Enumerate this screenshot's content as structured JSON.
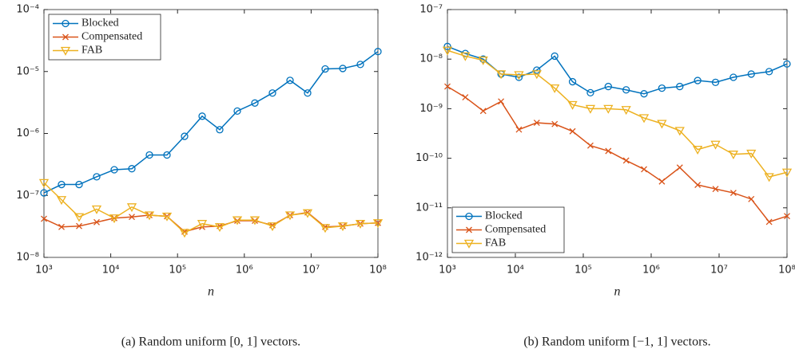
{
  "chart_data": [
    {
      "type": "line",
      "xscale": "log",
      "yscale": "log",
      "legend": "upper left",
      "xlabel": "n",
      "caption": "(a) Random uniform [0, 1] vectors.",
      "xlim": [
        1000,
        100000000
      ],
      "ylim": [
        1e-08,
        0.0001
      ],
      "xticks": [
        {
          "value": 1000,
          "label": "10³"
        },
        {
          "value": 10000,
          "label": "10⁴"
        },
        {
          "value": 100000,
          "label": "10⁵"
        },
        {
          "value": 1000000,
          "label": "10⁶"
        },
        {
          "value": 10000000,
          "label": "10⁷"
        },
        {
          "value": 100000000,
          "label": "10⁸"
        }
      ],
      "yticks": [
        {
          "value": 1e-08,
          "label": "10⁻⁸"
        },
        {
          "value": 1e-07,
          "label": "10⁻⁷"
        },
        {
          "value": 1e-06,
          "label": "10⁻⁶"
        },
        {
          "value": 1e-05,
          "label": "10⁻⁵"
        },
        {
          "value": 0.0001,
          "label": "10⁻⁴"
        }
      ],
      "x": [
        1000,
        1833,
        3360,
        6158,
        11288,
        20691,
        37927,
        69519,
        127427,
        233572,
        428133,
        784760,
        1438450,
        2636651,
        4832930,
        8858668,
        16237767,
        29763514,
        54555948,
        100000000
      ],
      "series": [
        {
          "name": "Blocked",
          "color": "#0072BD",
          "marker": "o",
          "values": [
            1.1e-07,
            1.5e-07,
            1.5e-07,
            2e-07,
            2.6e-07,
            2.7e-07,
            4.5e-07,
            4.5e-07,
            9e-07,
            1.9e-06,
            1.15e-06,
            2.3e-06,
            3.1e-06,
            4.5e-06,
            7.2e-06,
            4.5e-06,
            1.1e-05,
            1.12e-05,
            1.3e-05,
            2.1e-05
          ]
        },
        {
          "name": "Compensated",
          "color": "#D95319",
          "marker": "x",
          "values": [
            4.2e-08,
            3.1e-08,
            3.2e-08,
            3.7e-08,
            4.3e-08,
            4.5e-08,
            4.8e-08,
            4.6e-08,
            2.6e-08,
            3.1e-08,
            3.2e-08,
            3.9e-08,
            3.9e-08,
            3.3e-08,
            4.8e-08,
            5.3e-08,
            3.1e-08,
            3.2e-08,
            3.5e-08,
            3.6e-08
          ]
        },
        {
          "name": "FAB",
          "color": "#EDB120",
          "marker": "v",
          "values": [
            1.6e-07,
            8.5e-08,
            4.5e-08,
            6e-08,
            4.3e-08,
            6.5e-08,
            4.8e-08,
            4.6e-08,
            2.5e-08,
            3.5e-08,
            3.1e-08,
            4e-08,
            4e-08,
            3.2e-08,
            4.8e-08,
            5.2e-08,
            3e-08,
            3.2e-08,
            3.5e-08,
            3.6e-08
          ]
        }
      ]
    },
    {
      "type": "line",
      "xscale": "log",
      "yscale": "log",
      "legend": "lower left",
      "xlabel": "n",
      "caption": "(b) Random uniform [−1, 1] vectors.",
      "xlim": [
        1000,
        100000000
      ],
      "ylim": [
        1e-12,
        1e-07
      ],
      "xticks": [
        {
          "value": 1000,
          "label": "10³"
        },
        {
          "value": 10000,
          "label": "10⁴"
        },
        {
          "value": 100000,
          "label": "10⁵"
        },
        {
          "value": 1000000,
          "label": "10⁶"
        },
        {
          "value": 10000000,
          "label": "10⁷"
        },
        {
          "value": 100000000,
          "label": "10⁸"
        }
      ],
      "yticks": [
        {
          "value": 1e-12,
          "label": "10⁻¹²"
        },
        {
          "value": 1e-11,
          "label": "10⁻¹¹"
        },
        {
          "value": 1e-10,
          "label": "10⁻¹⁰"
        },
        {
          "value": 1e-09,
          "label": "10⁻⁹"
        },
        {
          "value": 1e-08,
          "label": "10⁻⁸"
        },
        {
          "value": 1e-07,
          "label": "10⁻⁷"
        }
      ],
      "x": [
        1000,
        1833,
        3360,
        6158,
        11288,
        20691,
        37927,
        69519,
        127427,
        233572,
        428133,
        784760,
        1438450,
        2636651,
        4832930,
        8858668,
        16237767,
        29763514,
        54555948,
        100000000
      ],
      "series": [
        {
          "name": "Blocked",
          "color": "#0072BD",
          "marker": "o",
          "values": [
            1.8e-08,
            1.3e-08,
            1e-08,
            5e-09,
            4.3e-09,
            6e-09,
            1.15e-08,
            3.5e-09,
            2.1e-09,
            2.8e-09,
            2.4e-09,
            2e-09,
            2.6e-09,
            2.8e-09,
            3.7e-09,
            3.4e-09,
            4.3e-09,
            5e-09,
            5.6e-09,
            8e-09
          ]
        },
        {
          "name": "Compensated",
          "color": "#D95319",
          "marker": "x",
          "values": [
            2.8e-09,
            1.7e-09,
            9e-10,
            1.4e-09,
            3.8e-10,
            5.2e-10,
            4.9e-10,
            3.5e-10,
            1.8e-10,
            1.4e-10,
            9e-11,
            6e-11,
            3.4e-11,
            6.5e-11,
            2.9e-11,
            2.4e-11,
            2e-11,
            1.5e-11,
            5.2e-12,
            6.8e-12
          ]
        },
        {
          "name": "FAB",
          "color": "#EDB120",
          "marker": "v",
          "values": [
            1.5e-08,
            1.15e-08,
            9.5e-09,
            5e-09,
            4.8e-09,
            5e-09,
            2.6e-09,
            1.2e-09,
            1e-09,
            1e-09,
            9.5e-10,
            6.5e-10,
            5e-10,
            3.6e-10,
            1.5e-10,
            1.9e-10,
            1.2e-10,
            1.25e-10,
            4.2e-11,
            5.2e-11
          ]
        }
      ]
    }
  ]
}
